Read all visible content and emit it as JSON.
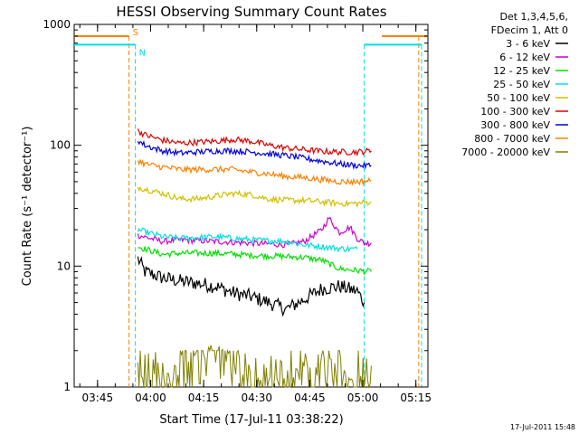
{
  "chart_data": {
    "type": "line",
    "title": "HESSI Observing Summary Count Rates",
    "xlabel": "Start Time (17-Jul-11 03:38:22)",
    "ylabel": "Count Rate (s⁻¹ detector⁻¹)",
    "yscale": "log",
    "ylim": [
      1,
      1000
    ],
    "y_ticks": [
      1,
      10,
      100,
      1000
    ],
    "x_unit": "minutes since 03:38:22",
    "xlim_minutes": [
      0,
      100
    ],
    "x_ticks": [
      {
        "label": "03:45",
        "minute": 6.6
      },
      {
        "label": "04:00",
        "minute": 21.6
      },
      {
        "label": "04:15",
        "minute": 36.6
      },
      {
        "label": "04:30",
        "minute": 51.6
      },
      {
        "label": "04:45",
        "minute": 66.6
      },
      {
        "label": "05:00",
        "minute": 81.6
      },
      {
        "label": "05:15",
        "minute": 96.6
      }
    ],
    "legend_header": [
      "Det 1,3,4,5,6,",
      "FDecim 1, Att 0"
    ],
    "legend_position": "right-outside",
    "grid": false,
    "series": [
      {
        "name": "3 - 6 keV",
        "color": "#000000",
        "x": [
          18,
          20,
          25,
          30,
          35,
          40,
          45,
          50,
          55,
          60,
          65,
          70,
          75,
          80,
          82
        ],
        "y": [
          11.5,
          9,
          8,
          7.5,
          7.2,
          6.8,
          6.0,
          5.6,
          5.0,
          4.4,
          5.3,
          6.5,
          6.8,
          6.2,
          5
        ]
      },
      {
        "name": "6 - 12 keV",
        "color": "#d000d0",
        "x": [
          18,
          25,
          30,
          40,
          50,
          60,
          65,
          70,
          72,
          75,
          78,
          80,
          82,
          84
        ],
        "y": [
          18,
          16,
          16.5,
          16,
          15.5,
          15,
          16,
          20,
          25,
          19,
          21,
          17,
          15.5,
          15.5
        ]
      },
      {
        "name": "12 - 25 keV",
        "color": "#00e000",
        "x": [
          18,
          25,
          30,
          40,
          50,
          60,
          65,
          70,
          75,
          80,
          84
        ],
        "y": [
          14.5,
          12.5,
          12.8,
          12.8,
          12.3,
          12,
          11.8,
          11.2,
          9.5,
          9.2,
          9
        ]
      },
      {
        "name": "25 - 50 keV",
        "color": "#00e0e0",
        "x": [
          18,
          25,
          30,
          40,
          50,
          60,
          65,
          70,
          75,
          80
        ],
        "y": [
          20,
          17.5,
          17,
          17.5,
          16.5,
          16,
          15,
          14.5,
          14,
          13.8
        ]
      },
      {
        "name": "50 - 100 keV",
        "color": "#d0c000",
        "x": [
          18,
          25,
          30,
          35,
          40,
          45,
          50,
          55,
          60,
          65,
          70,
          75,
          80,
          84
        ],
        "y": [
          45,
          40,
          36,
          36,
          38,
          40,
          39,
          36,
          35,
          35,
          34,
          33,
          33,
          34
        ]
      },
      {
        "name": "100 - 300 keV",
        "color": "#e00000",
        "x": [
          18,
          20,
          25,
          30,
          35,
          40,
          45,
          50,
          55,
          60,
          65,
          70,
          75,
          80,
          84
        ],
        "y": [
          132,
          122,
          110,
          104,
          106,
          108,
          112,
          108,
          100,
          95,
          92,
          89,
          88,
          88,
          90
        ]
      },
      {
        "name": "300 - 800 keV",
        "color": "#0000e0",
        "x": [
          18,
          20,
          25,
          30,
          35,
          40,
          45,
          50,
          55,
          60,
          65,
          70,
          75,
          80,
          84
        ],
        "y": [
          110,
          100,
          90,
          86,
          88,
          90,
          90,
          88,
          85,
          82,
          78,
          74,
          70,
          68,
          68
        ]
      },
      {
        "name": "800 - 7000 keV",
        "color": "#ff8000",
        "x": [
          18,
          20,
          25,
          30,
          35,
          40,
          45,
          50,
          55,
          60,
          65,
          70,
          75,
          80,
          84
        ],
        "y": [
          75,
          70,
          66,
          63,
          63,
          63,
          63,
          60,
          58,
          55,
          54,
          52,
          50,
          50,
          51
        ]
      },
      {
        "name": "7000 - 20000 keV",
        "color": "#808000",
        "x": [
          18,
          20,
          25,
          30,
          35,
          40,
          45,
          50,
          55,
          60,
          65,
          70,
          75,
          80,
          84
        ],
        "y": [
          1.5,
          1.6,
          1.4,
          1.6,
          2.7,
          2.9,
          2.4,
          1.3,
          1.5,
          1.6,
          2.0,
          1.8,
          1.6,
          1.6,
          1.5
        ]
      }
    ],
    "markers": [
      {
        "label": "S",
        "color": "#ff8000",
        "segments": [
          [
            0,
            15.5,
            800
          ],
          [
            87,
            100,
            800
          ]
        ],
        "v_lines": [
          15.5,
          97.4
        ]
      },
      {
        "label": "N",
        "color": "#00e0e0",
        "segments": [
          [
            0,
            17.3,
            680
          ],
          [
            82,
            98.2,
            680
          ]
        ],
        "v_lines": [
          17.3,
          82,
          98.2
        ]
      }
    ]
  },
  "footer": {
    "timestamp": "17-Jul-2011 15:48"
  }
}
